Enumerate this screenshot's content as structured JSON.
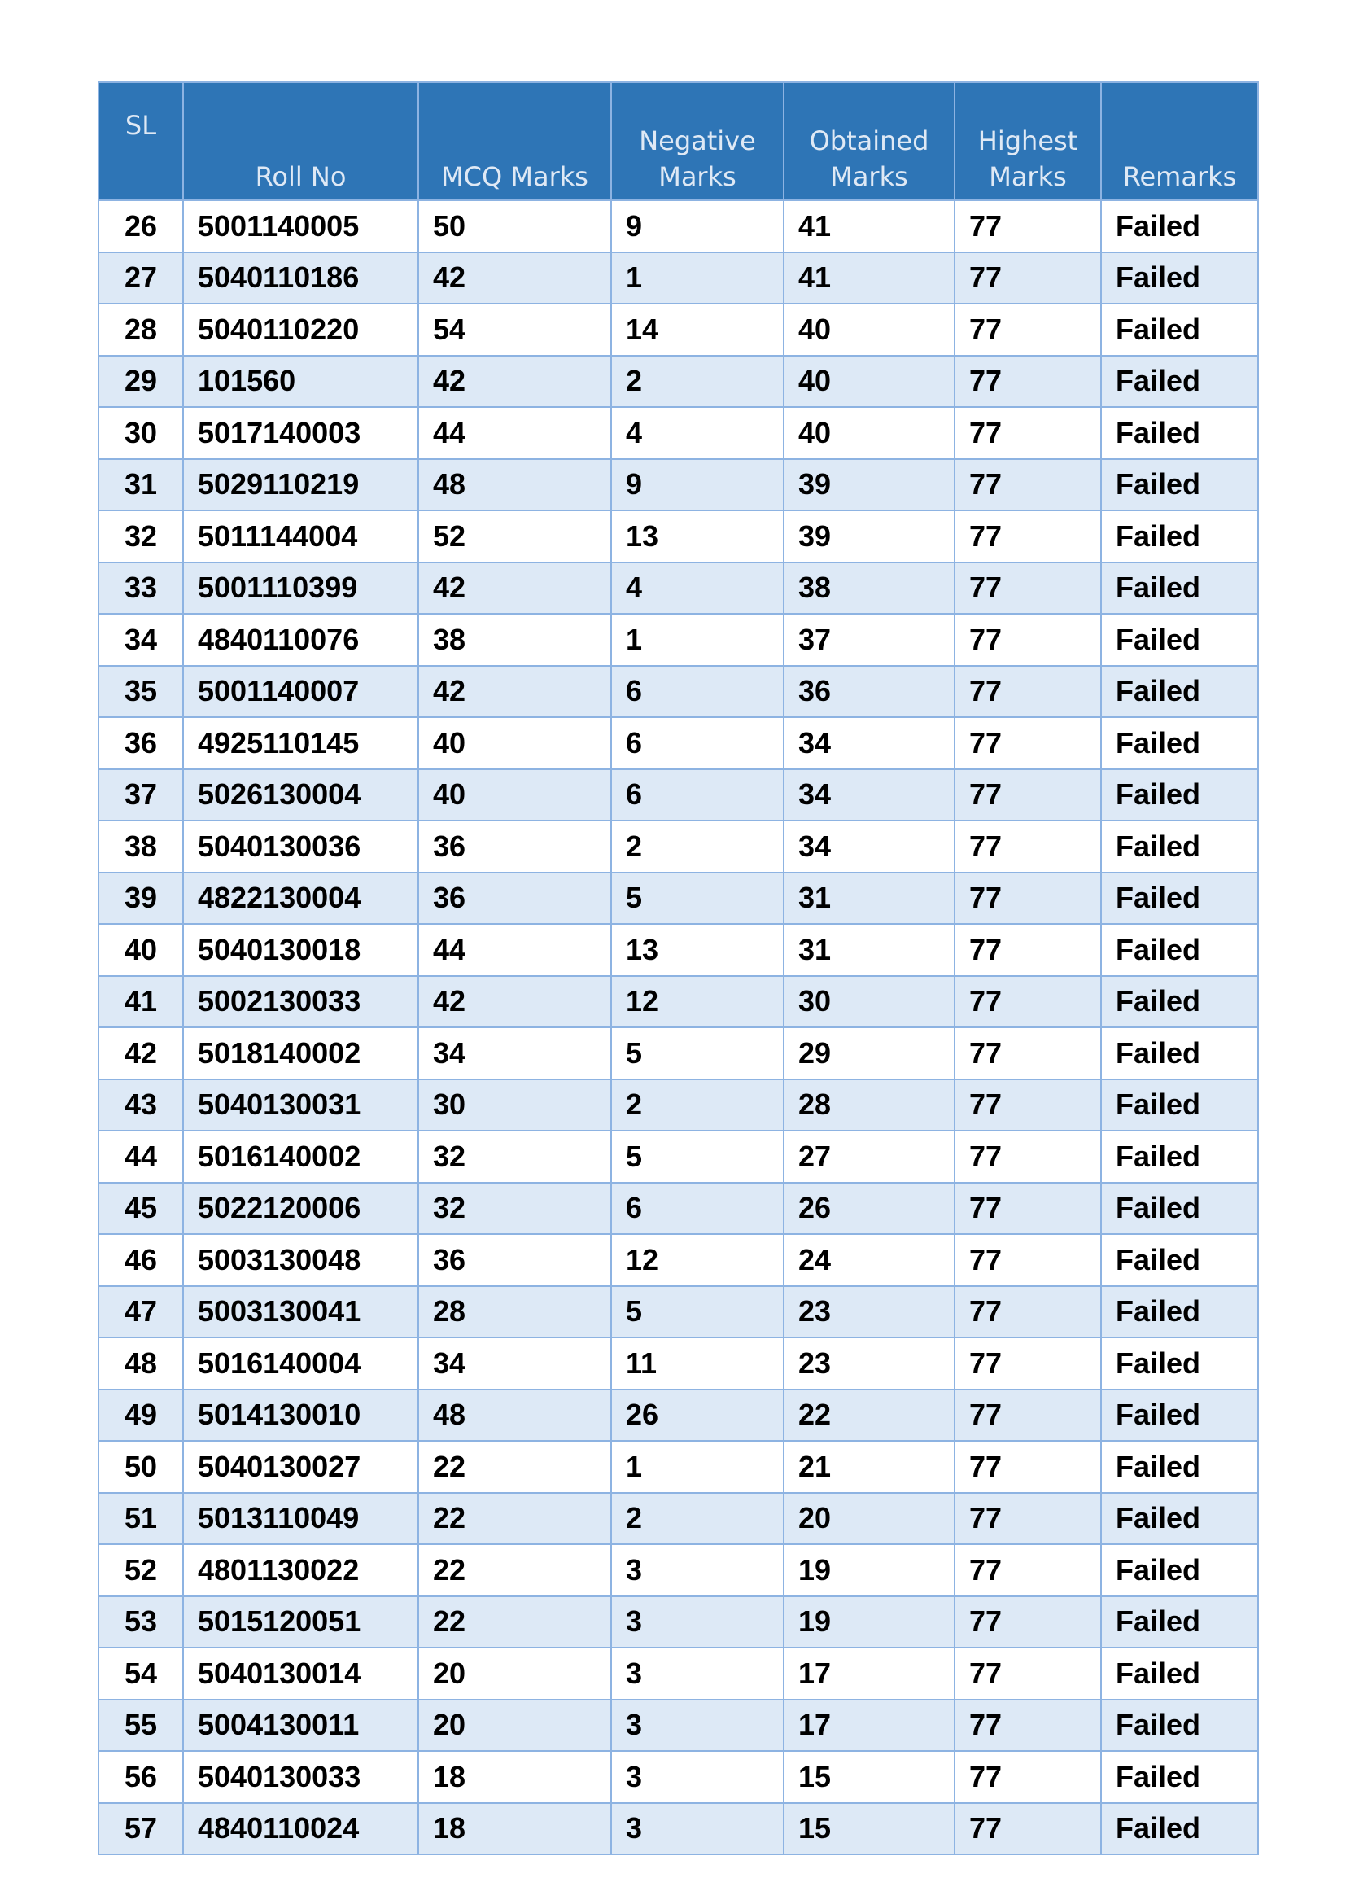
{
  "table": {
    "headers": [
      "SL",
      "Roll No",
      "MCQ Marks",
      "Negative Marks",
      "Obtained Marks",
      "Highest Marks",
      "Remarks"
    ],
    "colors": {
      "header_bg": "#2e75b6",
      "header_text": "#dfe9f5",
      "alt_row_bg": "#dde9f6",
      "border": "#8db3e2"
    },
    "rows": [
      [
        "26",
        "5001140005",
        "50",
        "9",
        "41",
        "77",
        "Failed"
      ],
      [
        "27",
        "5040110186",
        "42",
        "1",
        "41",
        "77",
        "Failed"
      ],
      [
        "28",
        "5040110220",
        "54",
        "14",
        "40",
        "77",
        "Failed"
      ],
      [
        "29",
        "101560",
        "42",
        "2",
        "40",
        "77",
        "Failed"
      ],
      [
        "30",
        "5017140003",
        "44",
        "4",
        "40",
        "77",
        "Failed"
      ],
      [
        "31",
        "5029110219",
        "48",
        "9",
        "39",
        "77",
        "Failed"
      ],
      [
        "32",
        "5011144004",
        "52",
        "13",
        "39",
        "77",
        "Failed"
      ],
      [
        "33",
        "5001110399",
        "42",
        "4",
        "38",
        "77",
        "Failed"
      ],
      [
        "34",
        "4840110076",
        "38",
        "1",
        "37",
        "77",
        "Failed"
      ],
      [
        "35",
        "5001140007",
        "42",
        "6",
        "36",
        "77",
        "Failed"
      ],
      [
        "36",
        "4925110145",
        "40",
        "6",
        "34",
        "77",
        "Failed"
      ],
      [
        "37",
        "5026130004",
        "40",
        "6",
        "34",
        "77",
        "Failed"
      ],
      [
        "38",
        "5040130036",
        "36",
        "2",
        "34",
        "77",
        "Failed"
      ],
      [
        "39",
        "4822130004",
        "36",
        "5",
        "31",
        "77",
        "Failed"
      ],
      [
        "40",
        "5040130018",
        "44",
        "13",
        "31",
        "77",
        "Failed"
      ],
      [
        "41",
        "5002130033",
        "42",
        "12",
        "30",
        "77",
        "Failed"
      ],
      [
        "42",
        "5018140002",
        "34",
        "5",
        "29",
        "77",
        "Failed"
      ],
      [
        "43",
        "5040130031",
        "30",
        "2",
        "28",
        "77",
        "Failed"
      ],
      [
        "44",
        "5016140002",
        "32",
        "5",
        "27",
        "77",
        "Failed"
      ],
      [
        "45",
        "5022120006",
        "32",
        "6",
        "26",
        "77",
        "Failed"
      ],
      [
        "46",
        "5003130048",
        "36",
        "12",
        "24",
        "77",
        "Failed"
      ],
      [
        "47",
        "5003130041",
        "28",
        "5",
        "23",
        "77",
        "Failed"
      ],
      [
        "48",
        "5016140004",
        "34",
        "11",
        "23",
        "77",
        "Failed"
      ],
      [
        "49",
        "5014130010",
        "48",
        "26",
        "22",
        "77",
        "Failed"
      ],
      [
        "50",
        "5040130027",
        "22",
        "1",
        "21",
        "77",
        "Failed"
      ],
      [
        "51",
        "5013110049",
        "22",
        "2",
        "20",
        "77",
        "Failed"
      ],
      [
        "52",
        "4801130022",
        "22",
        "3",
        "19",
        "77",
        "Failed"
      ],
      [
        "53",
        "5015120051",
        "22",
        "3",
        "19",
        "77",
        "Failed"
      ],
      [
        "54",
        "5040130014",
        "20",
        "3",
        "17",
        "77",
        "Failed"
      ],
      [
        "55",
        "5004130011",
        "20",
        "3",
        "17",
        "77",
        "Failed"
      ],
      [
        "56",
        "5040130033",
        "18",
        "3",
        "15",
        "77",
        "Failed"
      ],
      [
        "57",
        "4840110024",
        "18",
        "3",
        "15",
        "77",
        "Failed"
      ]
    ]
  }
}
